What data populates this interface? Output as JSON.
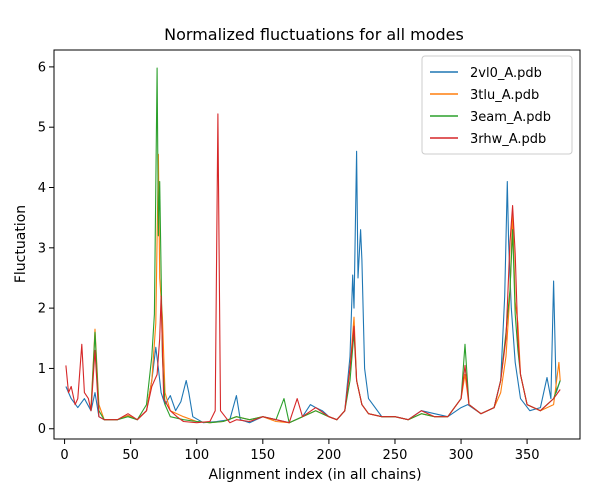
{
  "chart_data": {
    "type": "line",
    "title": "Normalized fluctuations for all modes",
    "xlabel": "Alignment index (in all chains)",
    "ylabel": "Fluctuation",
    "xlim": [
      -8,
      390
    ],
    "ylim": [
      -0.17,
      6.28
    ],
    "xticks": [
      0,
      50,
      100,
      150,
      200,
      250,
      300,
      350
    ],
    "yticks": [
      0,
      1,
      2,
      3,
      4,
      5,
      6
    ],
    "grid": false,
    "legend_position": "top-right",
    "series": [
      {
        "name": "2vl0_A.pdb",
        "color": "#1f77b4",
        "points": [
          [
            1,
            0.7
          ],
          [
            5,
            0.5
          ],
          [
            10,
            0.35
          ],
          [
            15,
            0.5
          ],
          [
            20,
            0.3
          ],
          [
            23,
            0.6
          ],
          [
            26,
            0.2
          ],
          [
            30,
            0.15
          ],
          [
            40,
            0.15
          ],
          [
            48,
            0.22
          ],
          [
            55,
            0.15
          ],
          [
            62,
            0.3
          ],
          [
            66,
            0.8
          ],
          [
            69,
            1.35
          ],
          [
            71,
            1.0
          ],
          [
            73,
            0.6
          ],
          [
            76,
            0.4
          ],
          [
            80,
            0.55
          ],
          [
            84,
            0.3
          ],
          [
            88,
            0.45
          ],
          [
            92,
            0.8
          ],
          [
            94,
            0.6
          ],
          [
            97,
            0.2
          ],
          [
            105,
            0.1
          ],
          [
            115,
            0.12
          ],
          [
            125,
            0.15
          ],
          [
            130,
            0.55
          ],
          [
            133,
            0.15
          ],
          [
            140,
            0.1
          ],
          [
            150,
            0.2
          ],
          [
            160,
            0.15
          ],
          [
            170,
            0.1
          ],
          [
            180,
            0.2
          ],
          [
            186,
            0.4
          ],
          [
            190,
            0.35
          ],
          [
            195,
            0.3
          ],
          [
            200,
            0.2
          ],
          [
            206,
            0.15
          ],
          [
            212,
            0.3
          ],
          [
            216,
            1.2
          ],
          [
            218,
            2.55
          ],
          [
            219,
            2.0
          ],
          [
            221,
            4.6
          ],
          [
            222,
            2.5
          ],
          [
            224,
            3.3
          ],
          [
            225,
            2.8
          ],
          [
            227,
            1.0
          ],
          [
            230,
            0.5
          ],
          [
            240,
            0.2
          ],
          [
            250,
            0.2
          ],
          [
            260,
            0.15
          ],
          [
            270,
            0.3
          ],
          [
            280,
            0.25
          ],
          [
            290,
            0.2
          ],
          [
            300,
            0.35
          ],
          [
            305,
            0.4
          ],
          [
            315,
            0.25
          ],
          [
            325,
            0.35
          ],
          [
            330,
            0.8
          ],
          [
            333,
            2.2
          ],
          [
            335,
            4.1
          ],
          [
            336,
            3.1
          ],
          [
            338,
            2.0
          ],
          [
            341,
            1.1
          ],
          [
            345,
            0.5
          ],
          [
            352,
            0.3
          ],
          [
            360,
            0.35
          ],
          [
            365,
            0.85
          ],
          [
            368,
            0.5
          ],
          [
            370,
            2.45
          ],
          [
            372,
            0.6
          ],
          [
            375,
            0.8
          ]
        ]
      },
      {
        "name": "3tlu_A.pdb",
        "color": "#ff7f0e",
        "points": [
          [
            20,
            0.35
          ],
          [
            23,
            1.65
          ],
          [
            26,
            0.4
          ],
          [
            30,
            0.15
          ],
          [
            40,
            0.15
          ],
          [
            48,
            0.22
          ],
          [
            55,
            0.15
          ],
          [
            62,
            0.3
          ],
          [
            66,
            0.8
          ],
          [
            69,
            1.75
          ],
          [
            71,
            4.55
          ],
          [
            72,
            2.5
          ],
          [
            74,
            1.85
          ],
          [
            76,
            0.6
          ],
          [
            80,
            0.3
          ],
          [
            90,
            0.2
          ],
          [
            100,
            0.12
          ],
          [
            110,
            0.1
          ],
          [
            120,
            0.12
          ],
          [
            130,
            0.2
          ],
          [
            140,
            0.15
          ],
          [
            150,
            0.2
          ],
          [
            160,
            0.12
          ],
          [
            170,
            0.1
          ],
          [
            180,
            0.2
          ],
          [
            190,
            0.3
          ],
          [
            200,
            0.2
          ],
          [
            206,
            0.15
          ],
          [
            212,
            0.3
          ],
          [
            216,
            1.0
          ],
          [
            219,
            1.85
          ],
          [
            221,
            0.8
          ],
          [
            225,
            0.4
          ],
          [
            230,
            0.25
          ],
          [
            240,
            0.2
          ],
          [
            250,
            0.2
          ],
          [
            260,
            0.15
          ],
          [
            270,
            0.25
          ],
          [
            280,
            0.2
          ],
          [
            290,
            0.2
          ],
          [
            300,
            0.5
          ],
          [
            303,
            0.9
          ],
          [
            306,
            0.4
          ],
          [
            315,
            0.25
          ],
          [
            325,
            0.35
          ],
          [
            330,
            0.6
          ],
          [
            334,
            1.2
          ],
          [
            337,
            2.25
          ],
          [
            339,
            3.6
          ],
          [
            341,
            2.1
          ],
          [
            343,
            1.75
          ],
          [
            345,
            0.9
          ],
          [
            350,
            0.4
          ],
          [
            360,
            0.3
          ],
          [
            370,
            0.4
          ],
          [
            374,
            1.1
          ],
          [
            375,
            0.8
          ]
        ]
      },
      {
        "name": "3eam_A.pdb",
        "color": "#2ca02c",
        "points": [
          [
            20,
            0.3
          ],
          [
            23,
            1.6
          ],
          [
            26,
            0.3
          ],
          [
            30,
            0.15
          ],
          [
            40,
            0.15
          ],
          [
            48,
            0.2
          ],
          [
            55,
            0.15
          ],
          [
            62,
            0.4
          ],
          [
            66,
            1.2
          ],
          [
            68,
            1.9
          ],
          [
            70,
            5.98
          ],
          [
            71,
            3.2
          ],
          [
            72,
            4.1
          ],
          [
            74,
            1.2
          ],
          [
            76,
            0.4
          ],
          [
            80,
            0.2
          ],
          [
            90,
            0.15
          ],
          [
            100,
            0.12
          ],
          [
            110,
            0.1
          ],
          [
            120,
            0.12
          ],
          [
            130,
            0.2
          ],
          [
            140,
            0.15
          ],
          [
            150,
            0.2
          ],
          [
            160,
            0.15
          ],
          [
            166,
            0.5
          ],
          [
            170,
            0.1
          ],
          [
            180,
            0.2
          ],
          [
            190,
            0.3
          ],
          [
            200,
            0.2
          ],
          [
            206,
            0.15
          ],
          [
            212,
            0.3
          ],
          [
            216,
            0.8
          ],
          [
            219,
            1.6
          ],
          [
            221,
            0.8
          ],
          [
            225,
            0.4
          ],
          [
            230,
            0.25
          ],
          [
            240,
            0.2
          ],
          [
            250,
            0.2
          ],
          [
            260,
            0.15
          ],
          [
            270,
            0.25
          ],
          [
            280,
            0.2
          ],
          [
            290,
            0.2
          ],
          [
            300,
            0.5
          ],
          [
            303,
            1.4
          ],
          [
            306,
            0.4
          ],
          [
            315,
            0.25
          ],
          [
            325,
            0.35
          ],
          [
            330,
            0.8
          ],
          [
            334,
            1.6
          ],
          [
            337,
            2.3
          ],
          [
            339,
            3.3
          ],
          [
            341,
            1.9
          ],
          [
            343,
            1.3
          ],
          [
            345,
            0.9
          ],
          [
            350,
            0.4
          ],
          [
            360,
            0.3
          ],
          [
            370,
            0.5
          ],
          [
            375,
            0.8
          ]
        ]
      },
      {
        "name": "3rhw_A.pdb",
        "color": "#d62728",
        "points": [
          [
            1,
            1.05
          ],
          [
            3,
            0.6
          ],
          [
            5,
            0.7
          ],
          [
            8,
            0.4
          ],
          [
            10,
            0.5
          ],
          [
            13,
            1.4
          ],
          [
            15,
            0.6
          ],
          [
            18,
            0.5
          ],
          [
            20,
            0.3
          ],
          [
            23,
            1.3
          ],
          [
            26,
            0.2
          ],
          [
            30,
            0.15
          ],
          [
            40,
            0.15
          ],
          [
            48,
            0.25
          ],
          [
            55,
            0.15
          ],
          [
            62,
            0.3
          ],
          [
            66,
            0.7
          ],
          [
            70,
            0.9
          ],
          [
            72,
            1.5
          ],
          [
            73,
            2.2
          ],
          [
            75,
            0.5
          ],
          [
            80,
            0.3
          ],
          [
            85,
            0.2
          ],
          [
            90,
            0.12
          ],
          [
            100,
            0.1
          ],
          [
            110,
            0.12
          ],
          [
            114,
            0.3
          ],
          [
            116,
            5.22
          ],
          [
            118,
            0.3
          ],
          [
            125,
            0.1
          ],
          [
            130,
            0.15
          ],
          [
            140,
            0.12
          ],
          [
            150,
            0.2
          ],
          [
            160,
            0.15
          ],
          [
            170,
            0.1
          ],
          [
            176,
            0.5
          ],
          [
            180,
            0.2
          ],
          [
            190,
            0.35
          ],
          [
            200,
            0.2
          ],
          [
            206,
            0.15
          ],
          [
            212,
            0.3
          ],
          [
            216,
            1.0
          ],
          [
            219,
            1.7
          ],
          [
            221,
            0.8
          ],
          [
            225,
            0.4
          ],
          [
            230,
            0.25
          ],
          [
            240,
            0.2
          ],
          [
            250,
            0.2
          ],
          [
            260,
            0.15
          ],
          [
            270,
            0.3
          ],
          [
            280,
            0.2
          ],
          [
            290,
            0.2
          ],
          [
            300,
            0.5
          ],
          [
            303,
            1.05
          ],
          [
            306,
            0.4
          ],
          [
            315,
            0.25
          ],
          [
            325,
            0.35
          ],
          [
            330,
            0.8
          ],
          [
            334,
            1.5
          ],
          [
            337,
            3.1
          ],
          [
            339,
            3.7
          ],
          [
            341,
            2.9
          ],
          [
            343,
            1.5
          ],
          [
            345,
            0.9
          ],
          [
            350,
            0.4
          ],
          [
            360,
            0.3
          ],
          [
            370,
            0.5
          ],
          [
            375,
            0.65
          ]
        ]
      }
    ]
  }
}
